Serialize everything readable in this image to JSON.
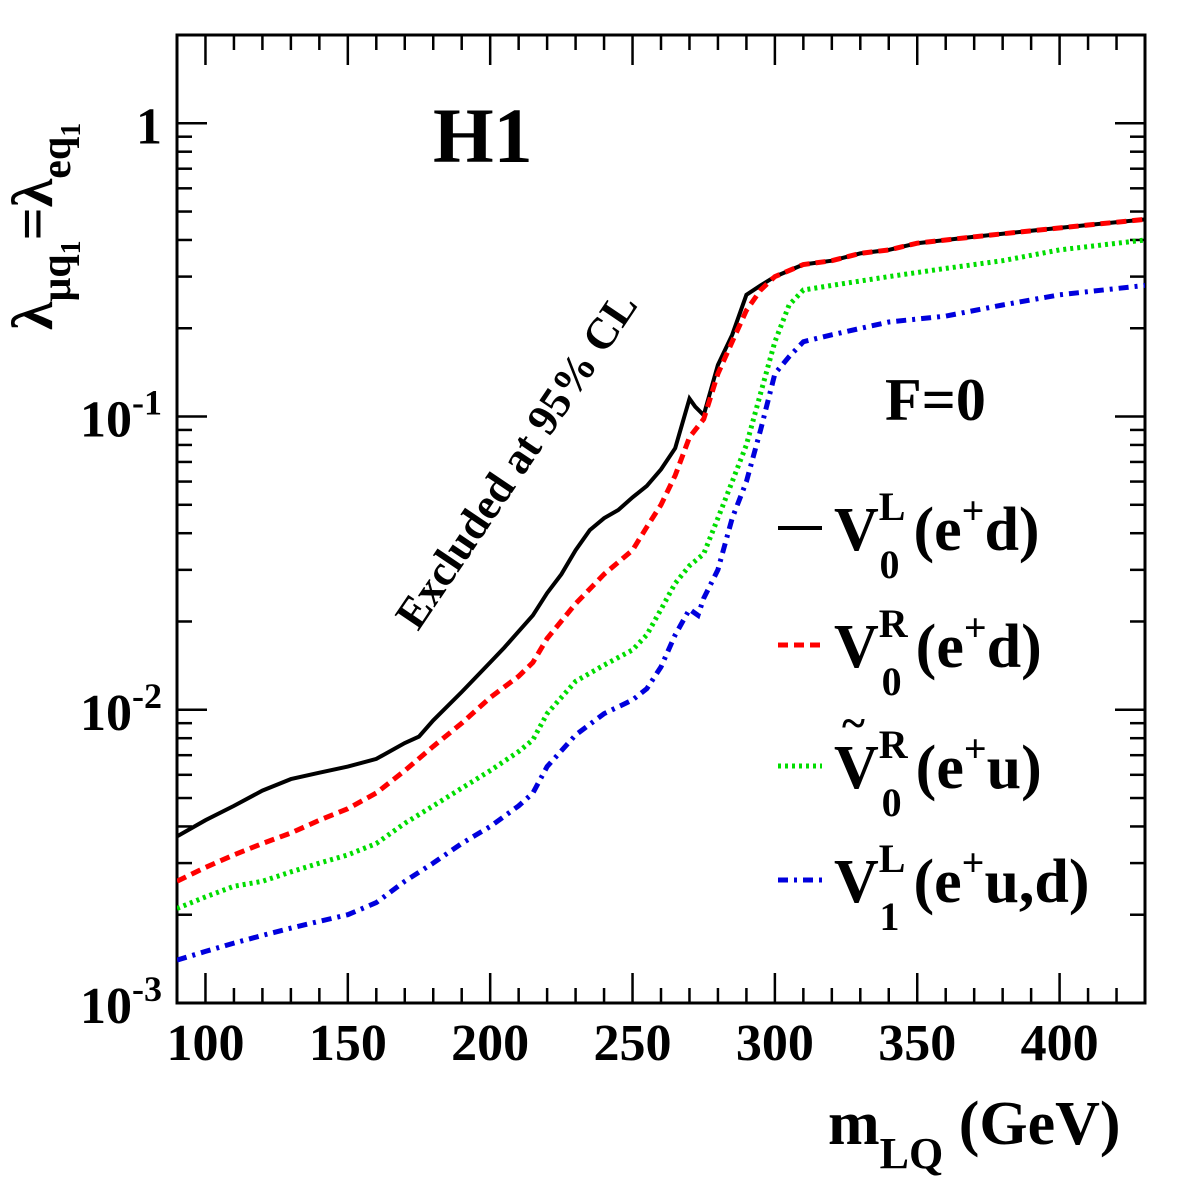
{
  "chart_data": {
    "type": "line",
    "title": "H1",
    "annotation": "F=0",
    "region_label": "Excluded at 95% CL",
    "xlabel": {
      "main": "m",
      "sub": "LQ",
      "unit": " (GeV)"
    },
    "ylabel": {
      "lambda1_sub": "μq",
      "lambda1_subsub": "1",
      "eq": "=",
      "lambda2_sub": "eq",
      "lambda2_subsub": "1",
      "symbol": "λ"
    },
    "xscale": "linear",
    "yscale": "log",
    "xlim": [
      90,
      430
    ],
    "ylim": [
      0.001,
      2
    ],
    "x_ticks": [
      100,
      150,
      200,
      250,
      300,
      350,
      400
    ],
    "x_tick_labels": [
      "100",
      "150",
      "200",
      "250",
      "300",
      "350",
      "400"
    ],
    "y_ticks": [
      {
        "value": 1,
        "base": "1",
        "exp": ""
      },
      {
        "value": 0.1,
        "base": "10",
        "exp": "-1"
      },
      {
        "value": 0.01,
        "base": "10",
        "exp": "-2"
      },
      {
        "value": 0.001,
        "base": "10",
        "exp": "-3"
      }
    ],
    "legend_position": "right",
    "series": [
      {
        "name": "V0L (e+d)",
        "label": {
          "base": "V",
          "tilde": false,
          "sup": "L",
          "sub": "0",
          "process": "(e",
          "plus": "+",
          "rest": "d)"
        },
        "color": "#000000",
        "style": "solid",
        "x": [
          90,
          100,
          110,
          120,
          130,
          140,
          150,
          160,
          170,
          175,
          180,
          190,
          200,
          205,
          210,
          215,
          220,
          225,
          230,
          235,
          240,
          245,
          250,
          255,
          260,
          265,
          270,
          272,
          275,
          280,
          285,
          290,
          295,
          300,
          310,
          320,
          330,
          340,
          350,
          370,
          390,
          410,
          430
        ],
        "y": [
          0.0037,
          0.0042,
          0.0047,
          0.0053,
          0.0058,
          0.0061,
          0.0064,
          0.0068,
          0.0077,
          0.0081,
          0.0092,
          0.0115,
          0.0145,
          0.0163,
          0.0185,
          0.021,
          0.025,
          0.029,
          0.035,
          0.041,
          0.045,
          0.048,
          0.053,
          0.058,
          0.066,
          0.078,
          0.115,
          0.108,
          0.101,
          0.15,
          0.19,
          0.26,
          0.28,
          0.3,
          0.33,
          0.34,
          0.36,
          0.37,
          0.39,
          0.41,
          0.43,
          0.45,
          0.47
        ]
      },
      {
        "name": "V0R (e+d)",
        "label": {
          "base": "V",
          "tilde": false,
          "sup": "R",
          "sub": "0",
          "process": "(e",
          "plus": "+",
          "rest": "d)"
        },
        "color": "#ff0000",
        "style": "dashed",
        "x": [
          90,
          100,
          110,
          120,
          130,
          140,
          150,
          160,
          170,
          180,
          190,
          200,
          210,
          215,
          220,
          230,
          240,
          250,
          255,
          260,
          265,
          270,
          275,
          280,
          285,
          290,
          295,
          300,
          310,
          320,
          330,
          340,
          350,
          370,
          390,
          410,
          430
        ],
        "y": [
          0.0026,
          0.0029,
          0.0032,
          0.0035,
          0.0038,
          0.0042,
          0.0046,
          0.0052,
          0.0062,
          0.0075,
          0.009,
          0.011,
          0.013,
          0.0145,
          0.0175,
          0.023,
          0.029,
          0.035,
          0.042,
          0.05,
          0.063,
          0.085,
          0.098,
          0.14,
          0.18,
          0.23,
          0.27,
          0.3,
          0.33,
          0.34,
          0.36,
          0.37,
          0.39,
          0.41,
          0.43,
          0.45,
          0.47
        ]
      },
      {
        "name": "V~0R (e+u)",
        "label": {
          "base": "V",
          "tilde": true,
          "sup": "R",
          "sub": "0",
          "process": "(e",
          "plus": "+",
          "rest": "u)"
        },
        "color": "#00dd00",
        "style": "dotted",
        "x": [
          90,
          100,
          110,
          120,
          130,
          140,
          150,
          160,
          170,
          180,
          190,
          200,
          210,
          215,
          220,
          230,
          240,
          250,
          255,
          260,
          265,
          270,
          275,
          280,
          285,
          290,
          295,
          300,
          305,
          310,
          320,
          340,
          360,
          380,
          400,
          430
        ],
        "y": [
          0.0021,
          0.0023,
          0.0025,
          0.0026,
          0.0028,
          0.003,
          0.0032,
          0.0035,
          0.0041,
          0.0047,
          0.0054,
          0.0062,
          0.0072,
          0.0079,
          0.0097,
          0.0125,
          0.0142,
          0.016,
          0.018,
          0.022,
          0.027,
          0.031,
          0.034,
          0.045,
          0.06,
          0.08,
          0.12,
          0.18,
          0.24,
          0.27,
          0.28,
          0.3,
          0.32,
          0.34,
          0.37,
          0.4
        ]
      },
      {
        "name": "V1L (e+u,d)",
        "label": {
          "base": "V",
          "tilde": false,
          "sup": "L",
          "sub": "1",
          "process": "(e",
          "plus": "+",
          "rest": "u,d)"
        },
        "color": "#0000dd",
        "style": "dashdot",
        "x": [
          90,
          100,
          110,
          120,
          130,
          140,
          150,
          160,
          170,
          180,
          190,
          200,
          210,
          215,
          220,
          230,
          240,
          250,
          255,
          260,
          265,
          270,
          273,
          275,
          280,
          285,
          290,
          295,
          300,
          305,
          310,
          320,
          340,
          360,
          380,
          400,
          430
        ],
        "y": [
          0.0014,
          0.0015,
          0.0016,
          0.0017,
          0.0018,
          0.0019,
          0.002,
          0.0022,
          0.0026,
          0.003,
          0.0035,
          0.004,
          0.0047,
          0.0052,
          0.0064,
          0.0082,
          0.0097,
          0.0108,
          0.0118,
          0.014,
          0.018,
          0.022,
          0.021,
          0.024,
          0.03,
          0.045,
          0.06,
          0.09,
          0.14,
          0.16,
          0.18,
          0.19,
          0.21,
          0.22,
          0.24,
          0.26,
          0.28
        ]
      }
    ]
  }
}
